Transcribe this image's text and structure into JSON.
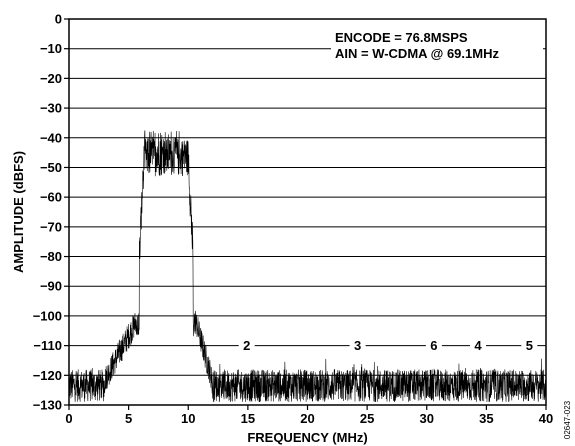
{
  "chart_data": {
    "type": "line",
    "title": "",
    "xlabel": "FREQUENCY (MHz)",
    "ylabel": "AMPLITUDE (dBFS)",
    "xlim": [
      0,
      40
    ],
    "ylim": [
      -130,
      0
    ],
    "x_ticks": [
      0,
      5,
      10,
      15,
      20,
      25,
      30,
      35,
      40
    ],
    "y_ticks": [
      0,
      -10,
      -20,
      -30,
      -40,
      -50,
      -60,
      -70,
      -80,
      -90,
      -100,
      -110,
      -120,
      -130
    ],
    "x_tick_labels": [
      "0",
      "5",
      "10",
      "15",
      "20",
      "25",
      "30",
      "35",
      "40"
    ],
    "y_tick_labels": [
      "0",
      "−10",
      "−20",
      "−30",
      "−40",
      "−50",
      "−60",
      "−70",
      "−80",
      "−90",
      "−100",
      "−110",
      "−120",
      "−130"
    ],
    "grid": "horizontal",
    "annotations": [
      "ENCODE = 76.8MSPS",
      "AIN = W-CDMA @ 69.1MHz"
    ],
    "harmonic_markers": [
      {
        "label": "2",
        "x": 14.9,
        "y": -110
      },
      {
        "label": "3",
        "x": 24.2,
        "y": -110
      },
      {
        "label": "6",
        "x": 30.6,
        "y": -110
      },
      {
        "label": "4",
        "x": 34.3,
        "y": -110
      },
      {
        "label": "5",
        "x": 38.6,
        "y": -110
      }
    ],
    "series": [
      {
        "noise_floor_db": -120,
        "signal_band_mhz": [
          5.9,
          10.4
        ],
        "signal_level_db": [
          -44,
          -38
        ],
        "skirt_level_db": -98
      }
    ],
    "figure_id": "02647-023"
  }
}
